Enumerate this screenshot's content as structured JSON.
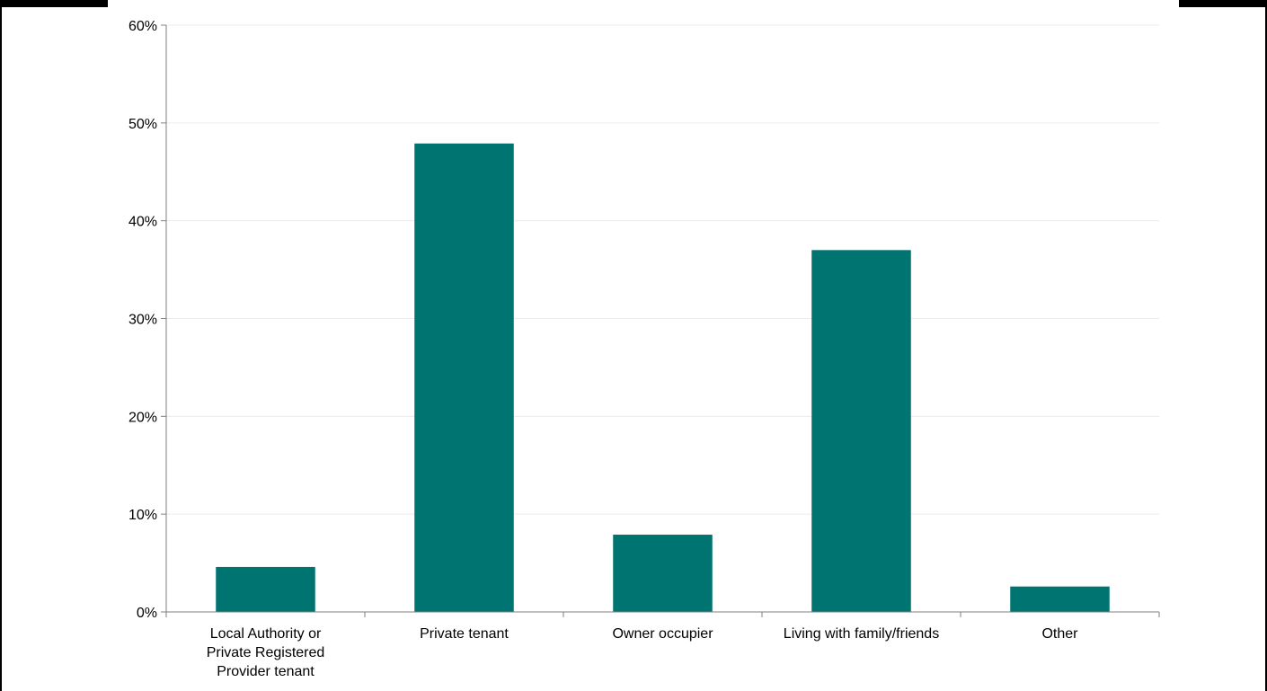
{
  "chart_data": {
    "type": "bar",
    "title": "",
    "xlabel": "",
    "ylabel": "",
    "categories": [
      [
        "Local Authority or",
        "Private Registered",
        "Provider tenant"
      ],
      [
        "Private tenant"
      ],
      [
        "Owner occupier"
      ],
      [
        "Living with family/friends"
      ],
      [
        "Other"
      ]
    ],
    "values": [
      4.6,
      47.9,
      7.9,
      37.0,
      2.6
    ],
    "ylim": [
      0,
      60
    ],
    "yticks": [
      "0%",
      "10%",
      "20%",
      "30%",
      "40%",
      "50%",
      "60%"
    ],
    "ytick_values": [
      0,
      10,
      20,
      30,
      40,
      50,
      60
    ],
    "grid": true,
    "bar_color": "#007471",
    "grid_color": "#ebebeb",
    "axis_color": "#7f7f7f"
  }
}
